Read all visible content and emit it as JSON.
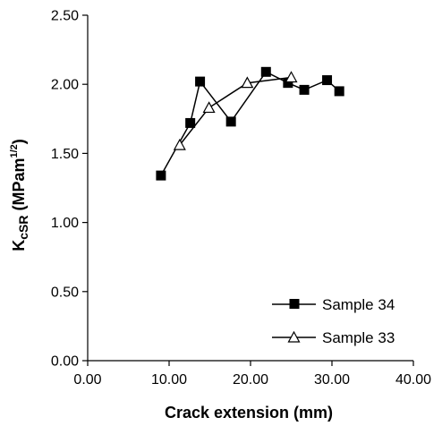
{
  "chart_data": {
    "type": "line",
    "xlabel": "Crack extension (mm)",
    "ylabel": {
      "base": "K",
      "sub": "cSR",
      "unit_prefix": " (MPam",
      "unit_sup": "1/2",
      "unit_suffix": ")"
    },
    "xlim": [
      0,
      40
    ],
    "ylim": [
      0,
      2.5
    ],
    "x_ticks": [
      "0.00",
      "10.00",
      "20.00",
      "30.00",
      "40.00"
    ],
    "y_ticks": [
      "0.00",
      "0.50",
      "1.00",
      "1.50",
      "2.00",
      "2.50"
    ],
    "grid": false,
    "legend_position": "bottom-right",
    "series": [
      {
        "name": "Sample 34",
        "marker": "filled-square",
        "x": [
          9.0,
          12.6,
          13.8,
          17.6,
          21.9,
          24.6,
          26.6,
          29.4,
          30.9
        ],
        "y": [
          1.34,
          1.72,
          2.02,
          1.73,
          2.09,
          2.01,
          1.96,
          2.03,
          1.95
        ]
      },
      {
        "name": "Sample 33",
        "marker": "open-triangle",
        "x": [
          11.3,
          14.9,
          19.6,
          25.0
        ],
        "y": [
          1.56,
          1.83,
          2.01,
          2.05
        ]
      }
    ]
  }
}
